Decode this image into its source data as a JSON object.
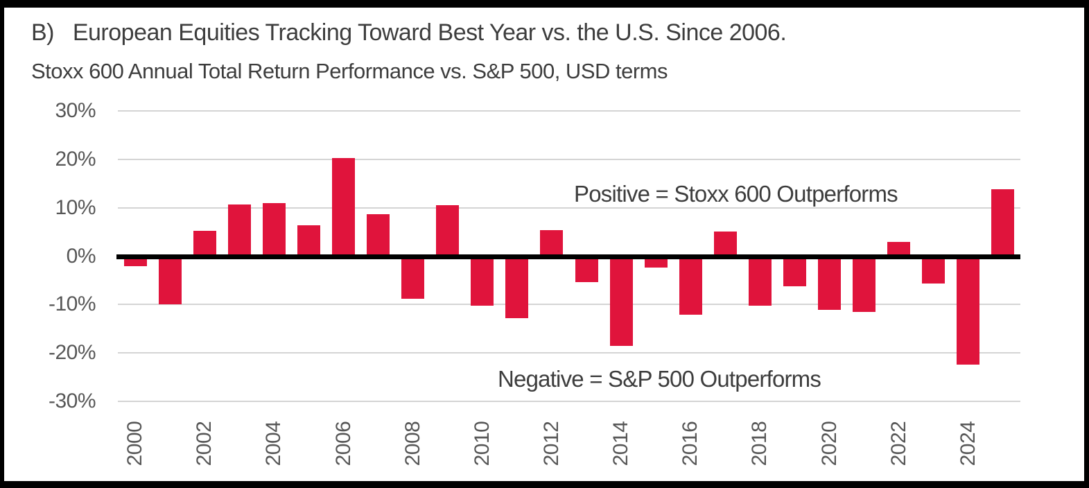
{
  "colors": {
    "bar": "#e0143c",
    "grid": "#d4d4d4",
    "zero_line": "#000000",
    "frame": "#000000",
    "text_dark": "#3d3d3d",
    "text_axis": "#575757"
  },
  "chart_data": {
    "type": "bar",
    "title": "B)   European Equities Tracking Toward Best Year vs. the U.S. Since 2006.",
    "subtitle": "Stoxx 600 Annual Total Return Performance vs. S&P 500, USD terms",
    "unit": "percent",
    "categories": [
      2000,
      2001,
      2002,
      2003,
      2004,
      2005,
      2006,
      2007,
      2008,
      2009,
      2010,
      2011,
      2012,
      2013,
      2014,
      2015,
      2016,
      2017,
      2018,
      2019,
      2020,
      2021,
      2022,
      2023,
      2024,
      2025
    ],
    "values": [
      -2.1,
      -10.0,
      5.2,
      10.7,
      11.0,
      6.4,
      20.3,
      8.6,
      -8.8,
      10.5,
      -10.3,
      -12.8,
      5.4,
      -5.3,
      -18.6,
      -2.4,
      -12.1,
      5.1,
      -10.2,
      -6.2,
      -11.1,
      -11.5,
      2.9,
      -5.7,
      -22.4,
      13.8
    ],
    "ylim": [
      -30,
      30
    ],
    "y_tick_labels": [
      "30%",
      "20%",
      "10%",
      "0%",
      "-10%",
      "-20%",
      "-30%"
    ],
    "x_tick_labels": [
      "2000",
      "2002",
      "2004",
      "2006",
      "2008",
      "2010",
      "2012",
      "2014",
      "2016",
      "2018",
      "2020",
      "2022",
      "2024"
    ],
    "grid": "horizontal gridlines on, bold zero axis line",
    "legend": "none",
    "annotations": {
      "positive": "Positive = Stoxx 600 Outperforms",
      "negative": "Negative = S&P 500 Outperforms"
    }
  }
}
